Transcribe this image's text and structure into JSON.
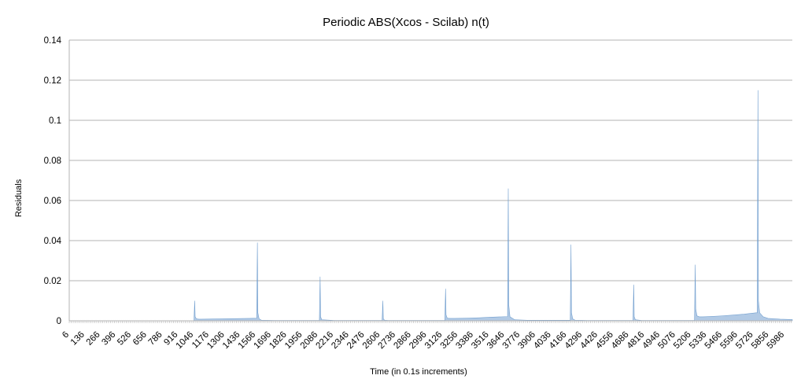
{
  "chart_data": {
    "type": "area",
    "title": "Periodic ABS(Xcos - Scilab) n(t)",
    "xlabel": "Time (in 0.1s increments)",
    "ylabel": "Residuals",
    "ylim": [
      0,
      0.14
    ],
    "y_ticks": [
      "0",
      "0.02",
      "0.04",
      "0.06",
      "0.08",
      "0.1",
      "0.12",
      "0.14"
    ],
    "x_ticks": [
      "6",
      "136",
      "266",
      "396",
      "526",
      "656",
      "786",
      "916",
      "1046",
      "1176",
      "1306",
      "1436",
      "1566",
      "1696",
      "1826",
      "1956",
      "2086",
      "2216",
      "2346",
      "2476",
      "2606",
      "2736",
      "2866",
      "2996",
      "3126",
      "3256",
      "3386",
      "3516",
      "3646",
      "3776",
      "3906",
      "4036",
      "4166",
      "4296",
      "4426",
      "4556",
      "4686",
      "4816",
      "4946",
      "5076",
      "5206",
      "5336",
      "5466",
      "5596",
      "5726",
      "5856",
      "5986"
    ],
    "xlim": [
      6,
      6001
    ],
    "grid": true,
    "legend": "none",
    "series_color": "#729fcf",
    "series": [
      {
        "x": [
          6,
          500,
          501,
          505,
          520,
          540,
          600,
          700,
          800,
          900,
          1000,
          1040,
          1046,
          1050,
          1060,
          1080,
          1100,
          1200,
          1300,
          1400,
          1500,
          1560,
          1566,
          1570,
          1580,
          1600,
          1700,
          1800,
          1900,
          2000,
          2080,
          2086,
          2090,
          2100,
          2200,
          2300,
          2400,
          2500,
          2600,
          2606,
          2610,
          2620,
          2650,
          2700,
          2800,
          2900,
          3000,
          3100,
          3120,
          3126,
          3130,
          3140,
          3160,
          3200,
          3300,
          3400,
          3500,
          3640,
          3646,
          3650,
          3660,
          3700,
          3800,
          3900,
          4000,
          4160,
          4166,
          4170,
          4180,
          4200,
          4300,
          4400,
          4500,
          4680,
          4686,
          4690,
          4700,
          4750,
          4800,
          4900,
          5000,
          5100,
          5190,
          5196,
          5200,
          5210,
          5230,
          5260,
          5300,
          5400,
          5500,
          5600,
          5700,
          5710,
          5716,
          5720,
          5730,
          5760,
          5800,
          5900,
          6001
        ],
        "y": [
          0,
          0,
          0,
          0,
          0,
          0,
          0,
          0,
          0,
          0,
          0,
          0,
          0.01,
          0.002,
          0.001,
          0.0008,
          0.0008,
          0.0009,
          0.001,
          0.0011,
          0.0012,
          0.0013,
          0.039,
          0.004,
          0.001,
          0.0003,
          0.0002,
          0.0002,
          0.0002,
          0.0002,
          0.0002,
          0.022,
          0.002,
          0.0005,
          0.0002,
          0.0002,
          0.0002,
          0.0002,
          0.0002,
          0.01,
          0.001,
          0.0003,
          0.0002,
          0.0002,
          0.0002,
          0.0002,
          0.0002,
          0.0002,
          0.0002,
          0.016,
          0.003,
          0.0013,
          0.0012,
          0.0012,
          0.0013,
          0.0015,
          0.0018,
          0.0021,
          0.066,
          0.008,
          0.002,
          0.0005,
          0.0003,
          0.0003,
          0.0003,
          0.0003,
          0.038,
          0.004,
          0.001,
          0.0003,
          0.0002,
          0.0002,
          0.0002,
          0.0002,
          0.018,
          0.002,
          0.0005,
          0.0002,
          0.0002,
          0.0002,
          0.0002,
          0.0002,
          0.0002,
          0.028,
          0.006,
          0.0025,
          0.002,
          0.002,
          0.0021,
          0.0024,
          0.0028,
          0.0033,
          0.004,
          0.004,
          0.115,
          0.01,
          0.004,
          0.002,
          0.0012,
          0.0008,
          0.0006
        ]
      }
    ]
  }
}
